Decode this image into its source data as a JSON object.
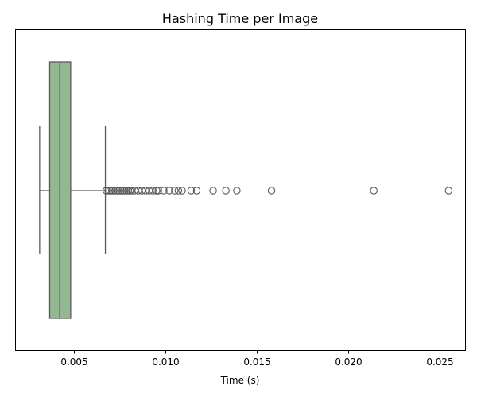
{
  "chart_data": {
    "type": "boxplot",
    "title": "Hashing Time per Image",
    "xlabel": "Time (s)",
    "ylabel": "",
    "xlim": [
      0.0018,
      0.0264
    ],
    "xticks": [
      0.005,
      0.01,
      0.015,
      0.02,
      0.025
    ],
    "xtick_labels": [
      "0.005",
      "0.010",
      "0.015",
      "0.020",
      "0.025"
    ],
    "grid": false,
    "box": {
      "whisker_low": 0.0031,
      "q1": 0.00365,
      "median": 0.0042,
      "q3": 0.0048,
      "whisker_high": 0.0067,
      "fill_color": "#93b993",
      "line_color": "#5a5a5a"
    },
    "outliers": [
      0.00675,
      0.00685,
      0.00695,
      0.00705,
      0.00715,
      0.00725,
      0.00735,
      0.00745,
      0.00755,
      0.00765,
      0.00775,
      0.00785,
      0.00795,
      0.00805,
      0.00815,
      0.0083,
      0.0085,
      0.0087,
      0.0089,
      0.0091,
      0.0093,
      0.0095,
      0.0096,
      0.0099,
      0.0102,
      0.0105,
      0.0107,
      0.0109,
      0.0114,
      0.0117,
      0.0126,
      0.0133,
      0.0139,
      0.0158,
      0.0214,
      0.0255
    ]
  }
}
